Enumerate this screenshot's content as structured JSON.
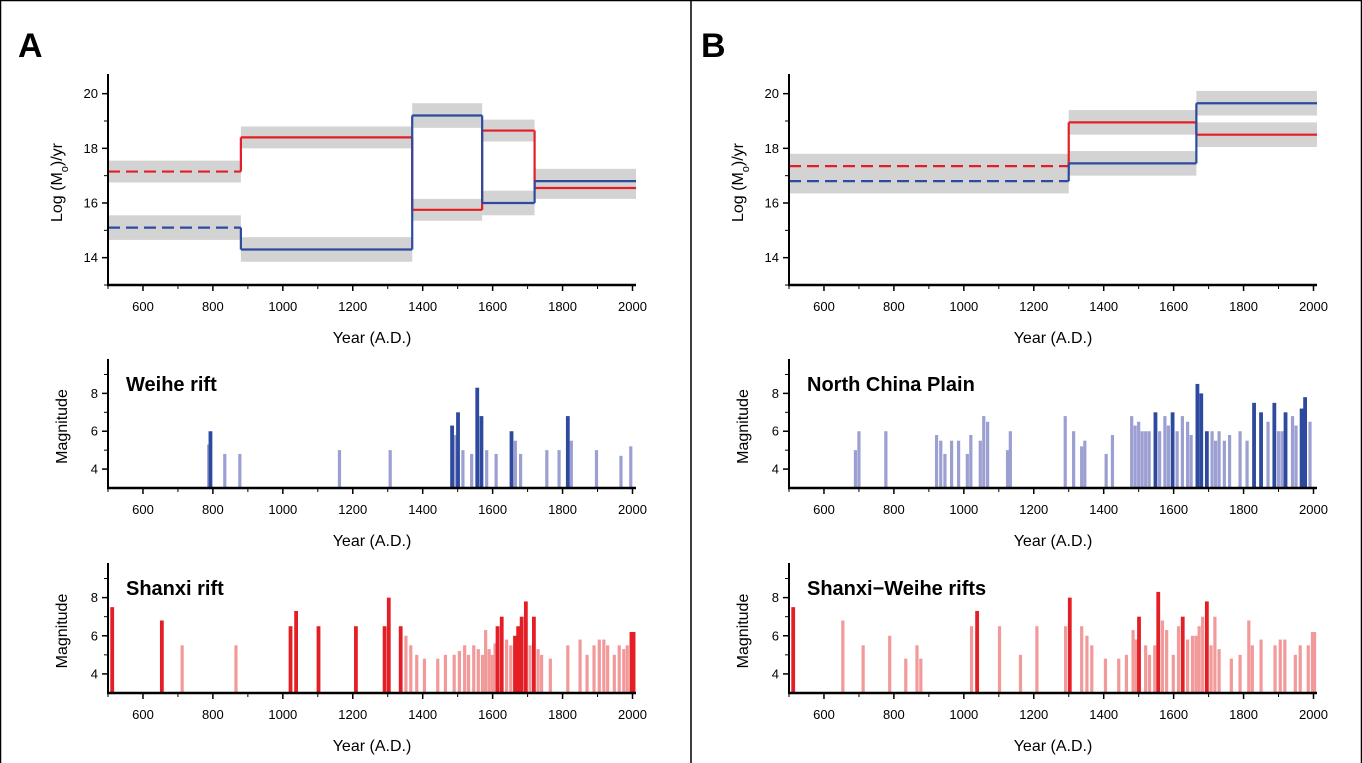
{
  "figure": {
    "panel_letters": [
      "A",
      "B"
    ]
  },
  "colors": {
    "blue": "#2e4a9e",
    "light_blue": "#9b9fd2",
    "red": "#e31e24",
    "light_red": "#f2999a",
    "band": "#d3d3d3"
  },
  "chart_data": [
    {
      "id": "A-moment",
      "panel": "A",
      "type": "line",
      "xlabel": "Year (A.D.)",
      "ylabel": "Log (M",
      "ylabel_sub": "o",
      "ylabel_suffix": ")/yr",
      "xlim": [
        500,
        2010
      ],
      "ylim": [
        13,
        20.5
      ],
      "xticks": [
        600,
        800,
        1000,
        1200,
        1400,
        1600,
        1800,
        2000
      ],
      "yticks": [
        14,
        16,
        18,
        20
      ],
      "series": [
        {
          "color": "red",
          "segments": [
            {
              "x": [
                500,
                880
              ],
              "y": 17.15,
              "band": 0.4,
              "dashed": true
            },
            {
              "x": [
                880,
                1370
              ],
              "y": 18.4,
              "band": 0.4
            },
            {
              "x": [
                1370,
                1570
              ],
              "y": 15.75,
              "band": 0.4
            },
            {
              "x": [
                1570,
                1720
              ],
              "y": 18.65,
              "band": 0.4
            },
            {
              "x": [
                1720,
                2010
              ],
              "y": 16.55,
              "band": 0.4
            }
          ]
        },
        {
          "color": "blue",
          "segments": [
            {
              "x": [
                500,
                880
              ],
              "y": 15.1,
              "band": 0.45,
              "dashed": true
            },
            {
              "x": [
                880,
                1370
              ],
              "y": 14.3,
              "band": 0.45
            },
            {
              "x": [
                1370,
                1570
              ],
              "y": 19.2,
              "band": 0.45
            },
            {
              "x": [
                1570,
                1720
              ],
              "y": 16.0,
              "band": 0.45
            },
            {
              "x": [
                1720,
                2010
              ],
              "y": 16.8,
              "band": 0.45
            }
          ]
        }
      ]
    },
    {
      "id": "A-weihe",
      "panel": "A",
      "type": "bar",
      "title": "Weihe rift",
      "xlabel": "Year (A.D.)",
      "ylabel": "Magnitude",
      "xlim": [
        500,
        2010
      ],
      "ylim": [
        3,
        9.5
      ],
      "xticks": [
        600,
        800,
        1000,
        1200,
        1400,
        1600,
        1800,
        2000
      ],
      "yticks": [
        4,
        6,
        8
      ],
      "strong_color": "blue",
      "light_color": "light_blue",
      "strong": [
        [
          793,
          6.0
        ],
        [
          1484,
          6.3
        ],
        [
          1501,
          7.0
        ],
        [
          1556,
          8.3
        ],
        [
          1568,
          6.8
        ],
        [
          1654,
          6.0
        ],
        [
          1815,
          6.8
        ]
      ],
      "light": [
        [
          788,
          5.3
        ],
        [
          834,
          4.8
        ],
        [
          877,
          4.8
        ],
        [
          1162,
          5.0
        ],
        [
          1307,
          5.0
        ],
        [
          1493,
          5.8
        ],
        [
          1515,
          5.0
        ],
        [
          1540,
          4.8
        ],
        [
          1583,
          5.0
        ],
        [
          1610,
          4.8
        ],
        [
          1665,
          5.5
        ],
        [
          1680,
          4.8
        ],
        [
          1755,
          5.0
        ],
        [
          1790,
          5.0
        ],
        [
          1825,
          5.5
        ],
        [
          1897,
          5.0
        ],
        [
          1967,
          4.7
        ],
        [
          1995,
          5.2
        ]
      ]
    },
    {
      "id": "A-shanxi",
      "panel": "A",
      "type": "bar",
      "title": "Shanxi rift",
      "xlabel": "Year (A.D.)",
      "ylabel": "Magnitude",
      "xlim": [
        500,
        2010
      ],
      "ylim": [
        3,
        9.5
      ],
      "xticks": [
        600,
        800,
        1000,
        1200,
        1400,
        1600,
        1800,
        2000
      ],
      "yticks": [
        4,
        6,
        8
      ],
      "strong_color": "red",
      "light_color": "light_red",
      "strong": [
        [
          512,
          7.5
        ],
        [
          654,
          6.8
        ],
        [
          1022,
          6.5
        ],
        [
          1038,
          7.3
        ],
        [
          1102,
          6.5
        ],
        [
          1209,
          6.5
        ],
        [
          1291,
          6.5
        ],
        [
          1303,
          8.0
        ],
        [
          1337,
          6.5
        ],
        [
          1614,
          6.5
        ],
        [
          1626,
          7.0
        ],
        [
          1664,
          6.0
        ],
        [
          1673,
          6.5
        ],
        [
          1683,
          7.0
        ],
        [
          1695,
          7.8
        ],
        [
          1718,
          7.0
        ],
        [
          1997,
          6.2
        ],
        [
          2003,
          6.2
        ]
      ],
      "light": [
        [
          712,
          5.5
        ],
        [
          866,
          5.5
        ],
        [
          1352,
          6.0
        ],
        [
          1366,
          5.5
        ],
        [
          1383,
          5.0
        ],
        [
          1405,
          4.8
        ],
        [
          1443,
          4.8
        ],
        [
          1465,
          5.0
        ],
        [
          1490,
          5.0
        ],
        [
          1505,
          5.2
        ],
        [
          1520,
          5.5
        ],
        [
          1531,
          5.0
        ],
        [
          1546,
          5.5
        ],
        [
          1559,
          5.3
        ],
        [
          1571,
          5.0
        ],
        [
          1580,
          6.3
        ],
        [
          1590,
          5.3
        ],
        [
          1599,
          5.0
        ],
        [
          1607,
          5.6
        ],
        [
          1640,
          5.8
        ],
        [
          1652,
          5.5
        ],
        [
          1707,
          5.5
        ],
        [
          1730,
          5.3
        ],
        [
          1740,
          5.0
        ],
        [
          1765,
          4.8
        ],
        [
          1815,
          5.5
        ],
        [
          1850,
          5.8
        ],
        [
          1870,
          5.0
        ],
        [
          1890,
          5.5
        ],
        [
          1905,
          5.8
        ],
        [
          1918,
          5.8
        ],
        [
          1929,
          5.5
        ],
        [
          1948,
          5.0
        ],
        [
          1962,
          5.5
        ],
        [
          1975,
          5.3
        ],
        [
          1985,
          5.5
        ]
      ]
    },
    {
      "id": "B-moment",
      "panel": "B",
      "type": "line",
      "xlabel": "Year (A.D.)",
      "ylabel": "Log (M",
      "ylabel_sub": "o",
      "ylabel_suffix": ")/yr",
      "xlim": [
        500,
        2010
      ],
      "ylim": [
        13,
        20.5
      ],
      "xticks": [
        600,
        800,
        1000,
        1200,
        1400,
        1600,
        1800,
        2000
      ],
      "yticks": [
        14,
        16,
        18,
        20
      ],
      "series": [
        {
          "color": "red",
          "segments": [
            {
              "x": [
                500,
                1300
              ],
              "y": 17.35,
              "band": 0.45,
              "dashed": true
            },
            {
              "x": [
                1300,
                1665
              ],
              "y": 18.95,
              "band": 0.45
            },
            {
              "x": [
                1665,
                2010
              ],
              "y": 18.5,
              "band": 0.45
            }
          ]
        },
        {
          "color": "blue",
          "segments": [
            {
              "x": [
                500,
                1300
              ],
              "y": 16.8,
              "band": 0.45,
              "dashed": true
            },
            {
              "x": [
                1300,
                1665
              ],
              "y": 17.45,
              "band": 0.45
            },
            {
              "x": [
                1665,
                2010
              ],
              "y": 19.65,
              "band": 0.45
            }
          ]
        }
      ]
    },
    {
      "id": "B-ncp",
      "panel": "B",
      "type": "bar",
      "title": "North China Plain",
      "xlabel": "Year (A.D.)",
      "ylabel": "Magnitude",
      "xlim": [
        500,
        2010
      ],
      "ylim": [
        3,
        9.5
      ],
      "xticks": [
        600,
        800,
        1000,
        1200,
        1400,
        1600,
        1800,
        2000
      ],
      "yticks": [
        4,
        6,
        8
      ],
      "strong_color": "blue",
      "light_color": "light_blue",
      "strong": [
        [
          1548,
          7.0
        ],
        [
          1597,
          7.0
        ],
        [
          1668,
          8.5
        ],
        [
          1679,
          8.0
        ],
        [
          1695,
          6.0
        ],
        [
          1830,
          7.5
        ],
        [
          1850,
          7.0
        ],
        [
          1888,
          7.5
        ],
        [
          1920,
          7.0
        ],
        [
          1966,
          7.2
        ],
        [
          1976,
          7.8
        ]
      ],
      "light": [
        [
          690,
          5.0
        ],
        [
          700,
          6.0
        ],
        [
          777,
          6.0
        ],
        [
          922,
          5.8
        ],
        [
          934,
          5.5
        ],
        [
          946,
          4.8
        ],
        [
          965,
          5.5
        ],
        [
          985,
          5.5
        ],
        [
          1010,
          4.8
        ],
        [
          1020,
          5.8
        ],
        [
          1047,
          5.5
        ],
        [
          1057,
          6.8
        ],
        [
          1068,
          6.5
        ],
        [
          1125,
          5.0
        ],
        [
          1133,
          6.0
        ],
        [
          1290,
          6.8
        ],
        [
          1314,
          6.0
        ],
        [
          1337,
          5.2
        ],
        [
          1346,
          5.5
        ],
        [
          1407,
          4.8
        ],
        [
          1425,
          5.8
        ],
        [
          1480,
          6.8
        ],
        [
          1490,
          6.3
        ],
        [
          1500,
          6.5
        ],
        [
          1510,
          6.0
        ],
        [
          1520,
          6.0
        ],
        [
          1530,
          6.0
        ],
        [
          1560,
          6.0
        ],
        [
          1575,
          6.8
        ],
        [
          1585,
          6.3
        ],
        [
          1610,
          6.0
        ],
        [
          1625,
          6.8
        ],
        [
          1640,
          6.5
        ],
        [
          1650,
          5.8
        ],
        [
          1710,
          6.0
        ],
        [
          1720,
          5.5
        ],
        [
          1730,
          6.0
        ],
        [
          1745,
          5.5
        ],
        [
          1760,
          5.8
        ],
        [
          1790,
          6.0
        ],
        [
          1810,
          5.5
        ],
        [
          1870,
          6.5
        ],
        [
          1900,
          6.0
        ],
        [
          1910,
          6.0
        ],
        [
          1940,
          6.8
        ],
        [
          1950,
          6.3
        ],
        [
          1990,
          6.5
        ]
      ]
    },
    {
      "id": "B-sw",
      "panel": "B",
      "type": "bar",
      "title": "Shanxi−Weihe rifts",
      "xlabel": "Year (A.D.)",
      "ylabel": "Magnitude",
      "xlim": [
        500,
        2010
      ],
      "ylim": [
        3,
        9.5
      ],
      "xticks": [
        600,
        800,
        1000,
        1200,
        1400,
        1600,
        1800,
        2000
      ],
      "yticks": [
        4,
        6,
        8
      ],
      "strong_color": "red",
      "light_color": "light_red",
      "strong": [
        [
          512,
          7.5
        ],
        [
          1038,
          7.3
        ],
        [
          1303,
          8.0
        ],
        [
          1501,
          7.0
        ],
        [
          1556,
          8.3
        ],
        [
          1626,
          7.0
        ],
        [
          1695,
          7.8
        ]
      ],
      "light": [
        [
          654,
          6.8
        ],
        [
          712,
          5.5
        ],
        [
          788,
          6.0
        ],
        [
          834,
          4.8
        ],
        [
          866,
          5.5
        ],
        [
          877,
          4.8
        ],
        [
          1022,
          6.5
        ],
        [
          1102,
          6.5
        ],
        [
          1162,
          5.0
        ],
        [
          1209,
          6.5
        ],
        [
          1291,
          6.5
        ],
        [
          1337,
          6.5
        ],
        [
          1352,
          6.0
        ],
        [
          1366,
          5.5
        ],
        [
          1405,
          4.8
        ],
        [
          1443,
          4.8
        ],
        [
          1465,
          5.0
        ],
        [
          1484,
          6.3
        ],
        [
          1493,
          5.8
        ],
        [
          1520,
          5.5
        ],
        [
          1531,
          5.0
        ],
        [
          1546,
          5.5
        ],
        [
          1568,
          6.8
        ],
        [
          1580,
          6.3
        ],
        [
          1599,
          5.0
        ],
        [
          1614,
          6.5
        ],
        [
          1640,
          5.8
        ],
        [
          1654,
          6.0
        ],
        [
          1664,
          6.0
        ],
        [
          1673,
          6.5
        ],
        [
          1683,
          7.0
        ],
        [
          1707,
          5.5
        ],
        [
          1718,
          7.0
        ],
        [
          1730,
          5.3
        ],
        [
          1765,
          4.8
        ],
        [
          1790,
          5.0
        ],
        [
          1815,
          6.8
        ],
        [
          1825,
          5.5
        ],
        [
          1850,
          5.8
        ],
        [
          1890,
          5.5
        ],
        [
          1905,
          5.8
        ],
        [
          1918,
          5.8
        ],
        [
          1948,
          5.0
        ],
        [
          1962,
          5.5
        ],
        [
          1985,
          5.5
        ],
        [
          1997,
          6.2
        ],
        [
          2003,
          6.2
        ]
      ]
    }
  ]
}
